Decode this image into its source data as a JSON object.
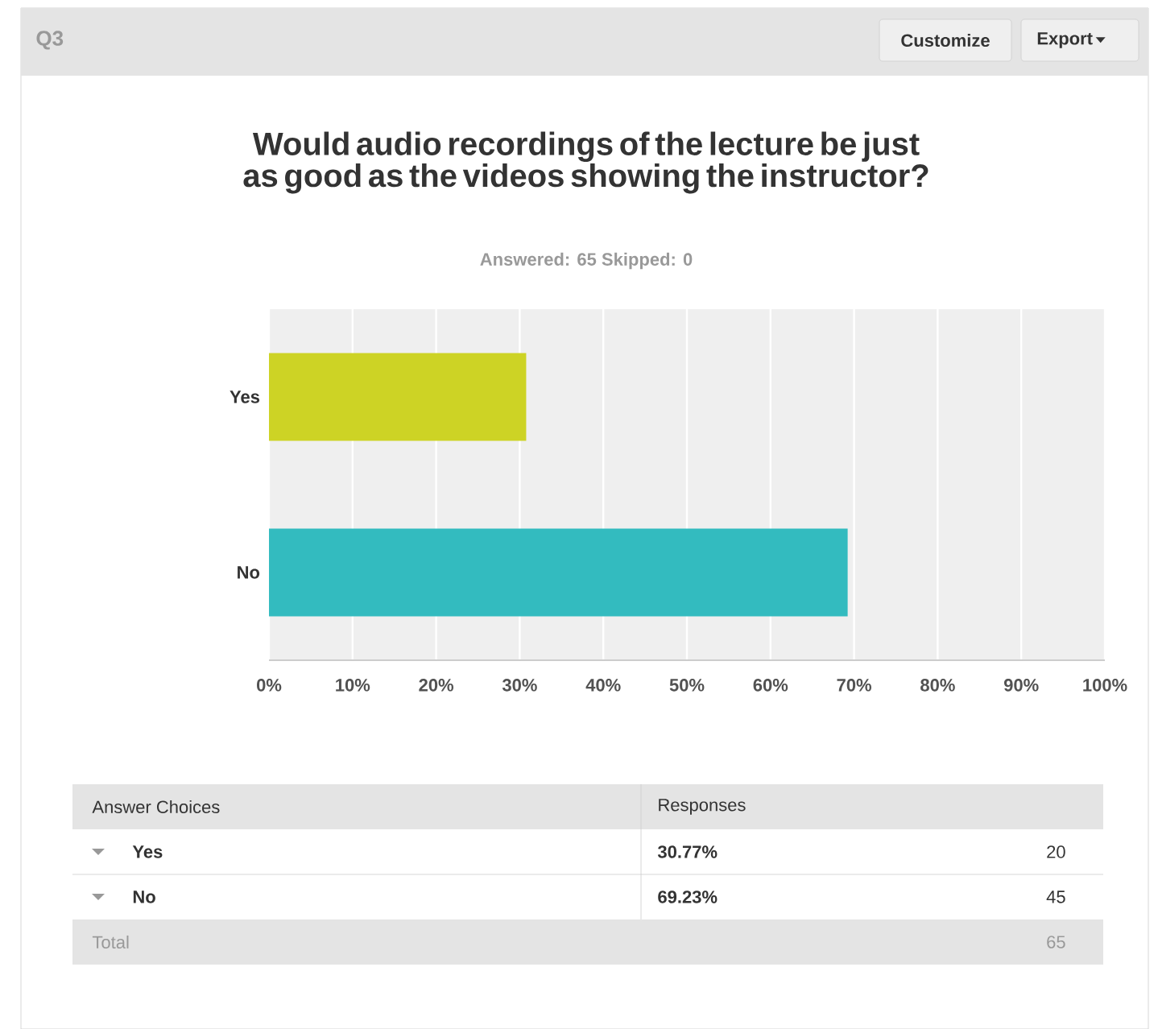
{
  "chart_data": {
    "type": "bar",
    "orientation": "horizontal",
    "title": "Would audio recordings of the lecture be just as good as the videos showing the instructor?",
    "subtitle": "Answered: 65    Skipped: 0",
    "categories": [
      "Yes",
      "No"
    ],
    "values": [
      30.77,
      69.23
    ],
    "colors": [
      "#cdd325",
      "#33bbbf"
    ],
    "xlim": [
      0,
      100
    ],
    "xticks": [
      {
        "value": 0,
        "label": "0%"
      },
      {
        "value": 10,
        "label": "10%"
      },
      {
        "value": 20,
        "label": "20%"
      },
      {
        "value": 30,
        "label": "30%"
      },
      {
        "value": 40,
        "label": "40%"
      },
      {
        "value": 50,
        "label": "50%"
      },
      {
        "value": 60,
        "label": "60%"
      },
      {
        "value": 70,
        "label": "70%"
      },
      {
        "value": 80,
        "label": "80%"
      },
      {
        "value": 90,
        "label": "90%"
      },
      {
        "value": 100,
        "label": "100%"
      }
    ],
    "grid": "x",
    "annotations": [
      "Q3",
      "Customize",
      "Export",
      "Answer Choices",
      "Responses",
      "20",
      "45",
      "Total",
      "65",
      "30.77%",
      "69.23%"
    ]
  }
}
